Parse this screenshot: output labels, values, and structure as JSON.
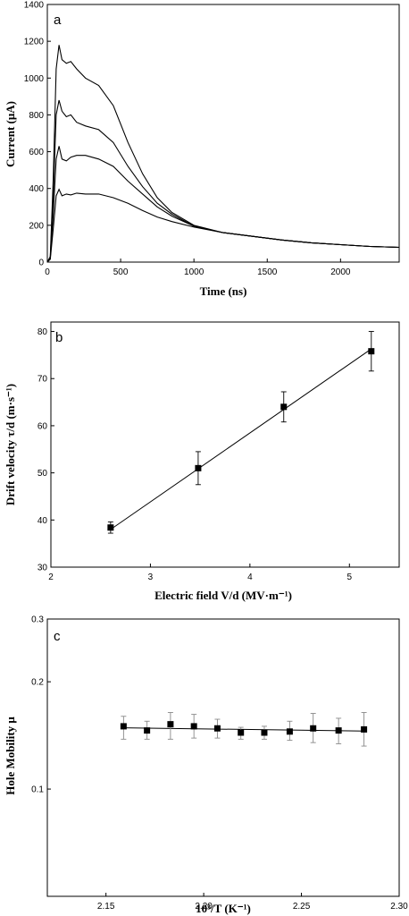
{
  "chart_data": [
    {
      "panel": "a",
      "type": "line",
      "xlabel": "Time (ns)",
      "ylabel": "Current (μA)",
      "xlim": [
        0,
        2400
      ],
      "ylim": [
        0,
        1400
      ],
      "xticks": [
        0,
        500,
        1000,
        1500,
        2000
      ],
      "yticks": [
        0,
        200,
        400,
        600,
        800,
        1000,
        1200,
        1400
      ],
      "series": [
        {
          "x": [
            0,
            20,
            40,
            60,
            80,
            100,
            130,
            160,
            200,
            260,
            350,
            450,
            550,
            650,
            750,
            850,
            1000,
            1200,
            1400,
            1600,
            1800,
            2000,
            2200,
            2400
          ],
          "values": [
            0,
            30,
            450,
            1050,
            1180,
            1100,
            1080,
            1090,
            1050,
            1000,
            960,
            850,
            650,
            480,
            350,
            270,
            200,
            160,
            140,
            120,
            105,
            95,
            85,
            80
          ]
        },
        {
          "x": [
            0,
            20,
            40,
            60,
            80,
            100,
            130,
            160,
            200,
            260,
            350,
            450,
            550,
            650,
            750,
            850,
            1000,
            1200,
            1400,
            1600,
            1800,
            2000,
            2200,
            2400
          ],
          "values": [
            0,
            25,
            350,
            800,
            880,
            820,
            790,
            800,
            760,
            740,
            720,
            650,
            520,
            410,
            320,
            260,
            195,
            160,
            140,
            120,
            105,
            95,
            85,
            80
          ]
        },
        {
          "x": [
            0,
            20,
            40,
            60,
            80,
            100,
            130,
            160,
            200,
            260,
            350,
            450,
            550,
            650,
            750,
            850,
            1000,
            1200,
            1400,
            1600,
            1800,
            2000,
            2200,
            2400
          ],
          "values": [
            0,
            20,
            260,
            560,
            630,
            560,
            550,
            570,
            580,
            580,
            560,
            520,
            440,
            370,
            300,
            250,
            195,
            160,
            140,
            120,
            105,
            95,
            85,
            80
          ]
        },
        {
          "x": [
            0,
            20,
            40,
            60,
            80,
            100,
            130,
            160,
            200,
            260,
            350,
            450,
            550,
            650,
            750,
            850,
            1000,
            1200,
            1400,
            1600,
            1800,
            2000,
            2200,
            2400
          ],
          "values": [
            0,
            15,
            180,
            360,
            395,
            360,
            370,
            365,
            375,
            370,
            370,
            350,
            320,
            280,
            245,
            220,
            190,
            160,
            140,
            120,
            105,
            95,
            85,
            80
          ]
        }
      ]
    },
    {
      "panel": "b",
      "type": "scatter",
      "xlabel": "Electric field V/d (MV·m⁻¹)",
      "ylabel": "Drift velocity τ/d (m·s⁻¹)",
      "xlim": [
        2,
        5.5
      ],
      "ylim": [
        30,
        82
      ],
      "xticks": [
        2,
        3,
        4,
        5
      ],
      "yticks": [
        30,
        40,
        50,
        60,
        70,
        80
      ],
      "x": [
        2.6,
        3.48,
        4.34,
        5.22
      ],
      "values": [
        38.4,
        51.0,
        64.0,
        75.8
      ],
      "errors": [
        1.2,
        3.5,
        3.2,
        4.2
      ],
      "fit": {
        "x": [
          2.6,
          5.22
        ],
        "values": [
          38.0,
          76.3
        ]
      }
    },
    {
      "panel": "c",
      "type": "scatter",
      "xlabel": "10³/T (K⁻¹)",
      "ylabel": "Hole Mobility μ",
      "xlim": [
        2.12,
        2.3
      ],
      "ylim": [
        0.05,
        0.3
      ],
      "yscale": "log",
      "xticks": [
        2.15,
        2.2,
        2.25,
        2.3
      ],
      "yticks": [
        0.1,
        0.2,
        0.3
      ],
      "x": [
        2.159,
        2.171,
        2.183,
        2.195,
        2.207,
        2.219,
        2.231,
        2.244,
        2.256,
        2.269,
        2.282
      ],
      "values": [
        0.15,
        0.146,
        0.152,
        0.15,
        0.148,
        0.144,
        0.144,
        0.145,
        0.148,
        0.146,
        0.147
      ],
      "err_hi": [
        0.16,
        0.155,
        0.164,
        0.162,
        0.157,
        0.149,
        0.15,
        0.155,
        0.163,
        0.158,
        0.164
      ],
      "err_lo": [
        0.138,
        0.138,
        0.138,
        0.139,
        0.139,
        0.138,
        0.138,
        0.137,
        0.135,
        0.134,
        0.132
      ],
      "fit": {
        "x": [
          2.159,
          2.282
        ],
        "values": [
          0.1485,
          0.1455
        ]
      }
    }
  ]
}
